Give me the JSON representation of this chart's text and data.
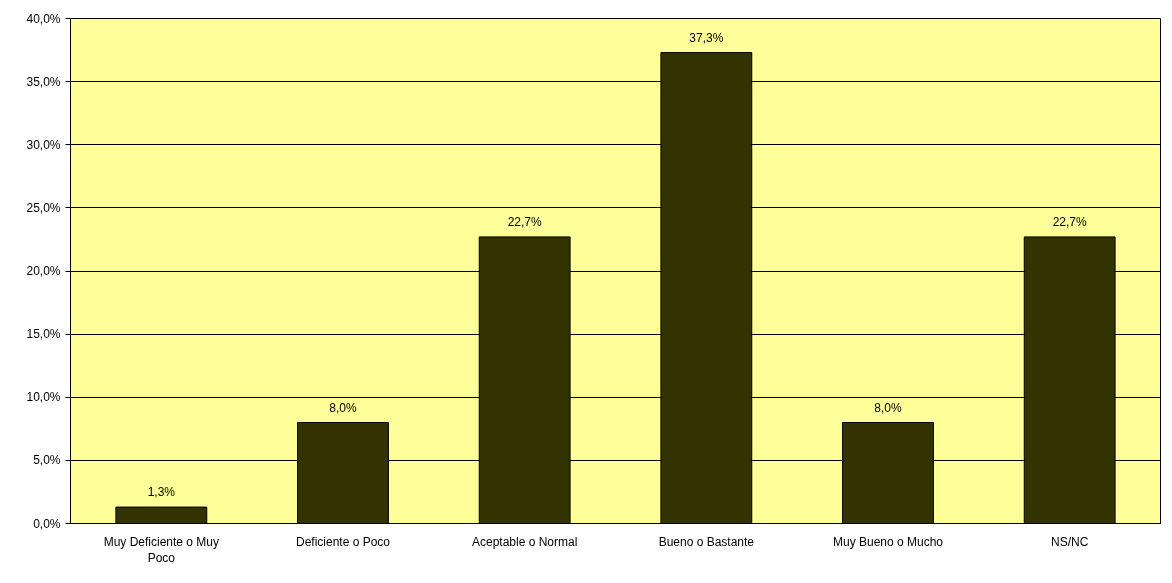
{
  "chart_data": {
    "type": "bar",
    "categories": [
      "Muy Deficiente o Muy Poco",
      "Deficiente o Poco",
      "Aceptable o Normal",
      "Bueno o Bastante",
      "Muy Bueno o Mucho",
      "NS/NC"
    ],
    "values": [
      1.3,
      8.0,
      22.7,
      37.3,
      8.0,
      22.7
    ],
    "value_labels": [
      "1,3%",
      "8,0%",
      "22,7%",
      "37,3%",
      "8,0%",
      "22,7%"
    ],
    "color": "#333300",
    "ylim": [
      0,
      40
    ],
    "yticks": [
      {
        "value": 0,
        "label": "0,0%"
      },
      {
        "value": 5,
        "label": "5,0%"
      },
      {
        "value": 10,
        "label": "10,0%"
      },
      {
        "value": 15,
        "label": "15,0%"
      },
      {
        "value": 20,
        "label": "20,0%"
      },
      {
        "value": 25,
        "label": "25,0%"
      },
      {
        "value": 30,
        "label": "30,0%"
      },
      {
        "value": 35,
        "label": "35,0%"
      },
      {
        "value": 40,
        "label": "40,0%"
      }
    ],
    "grid": "y"
  }
}
